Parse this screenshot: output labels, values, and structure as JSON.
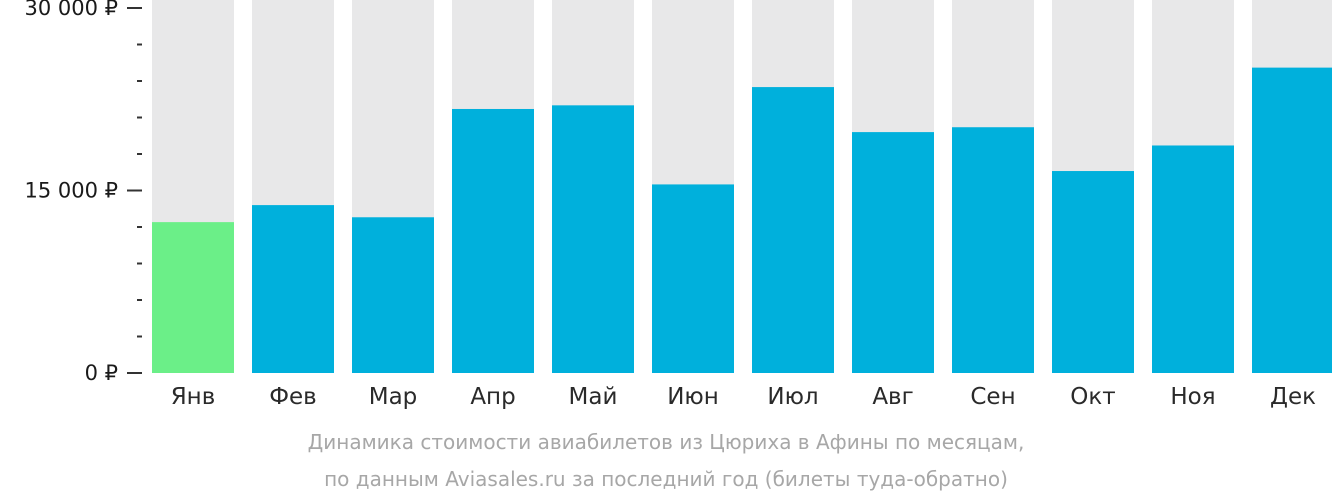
{
  "chart_data": {
    "type": "bar",
    "categories": [
      "Янв",
      "Фев",
      "Мар",
      "Апр",
      "Май",
      "Июн",
      "Июл",
      "Авг",
      "Сен",
      "Окт",
      "Ноя",
      "Дек"
    ],
    "values": [
      12400,
      13800,
      12800,
      21700,
      22000,
      15500,
      23500,
      19800,
      20200,
      16600,
      18700,
      25100
    ],
    "ylim": [
      0,
      30000
    ],
    "yticks": [
      {
        "value": 0,
        "label": "0 ₽"
      },
      {
        "value": 15000,
        "label": "15 000 ₽"
      },
      {
        "value": 30000,
        "label": "30 000 ₽"
      }
    ],
    "minor_tick_step": 3000,
    "grid": false,
    "colors": {
      "bar": "#00b0dc",
      "min_bar": "#6bef88",
      "track": "#e8e8e9"
    },
    "caption": [
      "Динамика стоимости авиабилетов из Цюриха в Афины по месяцам,",
      "по данным Aviasales.ru за последний год (билеты туда-обратно)"
    ]
  }
}
